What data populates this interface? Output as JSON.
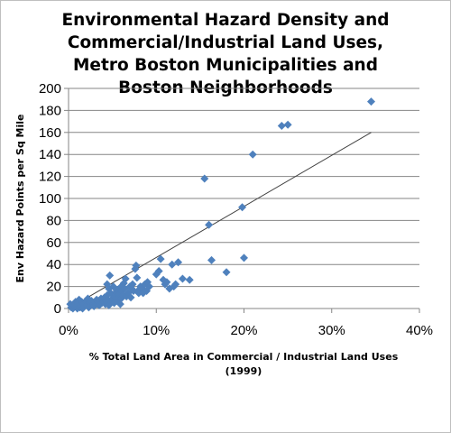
{
  "chart_data": {
    "type": "scatter",
    "title_lines": [
      "Environmental Hazard Density and",
      "Commercial/Industrial Land Uses,",
      "Metro Boston Municipalities and",
      "Boston Neighborhoods"
    ],
    "xlabel_lines": [
      "% Total Land Area in Commercial / Industrial Land Uses",
      "(1999)"
    ],
    "ylabel": "Env Hazard Points per Sq Mile",
    "xlim": [
      0,
      0.4
    ],
    "ylim": [
      0,
      200
    ],
    "x_ticks": [
      0,
      0.1,
      0.2,
      0.3,
      0.4
    ],
    "x_tick_labels": [
      "0%",
      "10%",
      "20%",
      "30%",
      "40%"
    ],
    "y_ticks": [
      0,
      20,
      40,
      60,
      80,
      100,
      120,
      140,
      160,
      180,
      200
    ],
    "y_tick_labels": [
      "0",
      "20",
      "40",
      "60",
      "80",
      "100",
      "120",
      "140",
      "160",
      "180",
      "200"
    ],
    "grid": "horizontal",
    "marker_color": "#4f81bd",
    "trendline": {
      "x": [
        0,
        0.345
      ],
      "y": [
        0,
        160
      ],
      "color": "#404040"
    },
    "points": [
      {
        "x": 0.002,
        "y": 4
      },
      {
        "x": 0.003,
        "y": 1
      },
      {
        "x": 0.005,
        "y": 0
      },
      {
        "x": 0.006,
        "y": 3
      },
      {
        "x": 0.008,
        "y": 6
      },
      {
        "x": 0.009,
        "y": 2
      },
      {
        "x": 0.01,
        "y": 0
      },
      {
        "x": 0.011,
        "y": 5
      },
      {
        "x": 0.012,
        "y": 8
      },
      {
        "x": 0.013,
        "y": 1
      },
      {
        "x": 0.014,
        "y": 3
      },
      {
        "x": 0.015,
        "y": 6
      },
      {
        "x": 0.016,
        "y": 0
      },
      {
        "x": 0.017,
        "y": 4
      },
      {
        "x": 0.018,
        "y": 2
      },
      {
        "x": 0.02,
        "y": 7
      },
      {
        "x": 0.021,
        "y": 3
      },
      {
        "x": 0.022,
        "y": 9
      },
      {
        "x": 0.023,
        "y": 1
      },
      {
        "x": 0.024,
        "y": 5
      },
      {
        "x": 0.025,
        "y": 3
      },
      {
        "x": 0.026,
        "y": 7
      },
      {
        "x": 0.028,
        "y": 4
      },
      {
        "x": 0.029,
        "y": 2
      },
      {
        "x": 0.03,
        "y": 6
      },
      {
        "x": 0.031,
        "y": 5
      },
      {
        "x": 0.032,
        "y": 8
      },
      {
        "x": 0.033,
        "y": 4
      },
      {
        "x": 0.034,
        "y": 6
      },
      {
        "x": 0.035,
        "y": 3
      },
      {
        "x": 0.036,
        "y": 7
      },
      {
        "x": 0.037,
        "y": 9
      },
      {
        "x": 0.038,
        "y": 5
      },
      {
        "x": 0.039,
        "y": 8
      },
      {
        "x": 0.04,
        "y": 6
      },
      {
        "x": 0.041,
        "y": 10
      },
      {
        "x": 0.042,
        "y": 4
      },
      {
        "x": 0.043,
        "y": 7
      },
      {
        "x": 0.044,
        "y": 12
      },
      {
        "x": 0.044,
        "y": 22
      },
      {
        "x": 0.045,
        "y": 8
      },
      {
        "x": 0.046,
        "y": 3
      },
      {
        "x": 0.046,
        "y": 18
      },
      {
        "x": 0.047,
        "y": 30
      },
      {
        "x": 0.048,
        "y": 14
      },
      {
        "x": 0.049,
        "y": 6
      },
      {
        "x": 0.05,
        "y": 9
      },
      {
        "x": 0.051,
        "y": 20
      },
      {
        "x": 0.052,
        "y": 5
      },
      {
        "x": 0.053,
        "y": 11
      },
      {
        "x": 0.054,
        "y": 15
      },
      {
        "x": 0.055,
        "y": 7
      },
      {
        "x": 0.056,
        "y": 17
      },
      {
        "x": 0.057,
        "y": 10
      },
      {
        "x": 0.058,
        "y": 13
      },
      {
        "x": 0.059,
        "y": 4
      },
      {
        "x": 0.06,
        "y": 9
      },
      {
        "x": 0.06,
        "y": 20
      },
      {
        "x": 0.061,
        "y": 16
      },
      {
        "x": 0.062,
        "y": 12
      },
      {
        "x": 0.063,
        "y": 23
      },
      {
        "x": 0.064,
        "y": 18
      },
      {
        "x": 0.065,
        "y": 27
      },
      {
        "x": 0.066,
        "y": 11
      },
      {
        "x": 0.068,
        "y": 14
      },
      {
        "x": 0.07,
        "y": 20
      },
      {
        "x": 0.071,
        "y": 10
      },
      {
        "x": 0.072,
        "y": 18
      },
      {
        "x": 0.073,
        "y": 22
      },
      {
        "x": 0.074,
        "y": 16
      },
      {
        "x": 0.076,
        "y": 36
      },
      {
        "x": 0.077,
        "y": 39
      },
      {
        "x": 0.078,
        "y": 28
      },
      {
        "x": 0.079,
        "y": 16
      },
      {
        "x": 0.08,
        "y": 14
      },
      {
        "x": 0.082,
        "y": 20
      },
      {
        "x": 0.084,
        "y": 18
      },
      {
        "x": 0.085,
        "y": 14
      },
      {
        "x": 0.087,
        "y": 22
      },
      {
        "x": 0.089,
        "y": 16
      },
      {
        "x": 0.09,
        "y": 24
      },
      {
        "x": 0.092,
        "y": 20
      },
      {
        "x": 0.1,
        "y": 31
      },
      {
        "x": 0.103,
        "y": 34
      },
      {
        "x": 0.105,
        "y": 45
      },
      {
        "x": 0.108,
        "y": 26
      },
      {
        "x": 0.11,
        "y": 22
      },
      {
        "x": 0.112,
        "y": 24
      },
      {
        "x": 0.115,
        "y": 18
      },
      {
        "x": 0.118,
        "y": 40
      },
      {
        "x": 0.12,
        "y": 20
      },
      {
        "x": 0.122,
        "y": 22
      },
      {
        "x": 0.125,
        "y": 42
      },
      {
        "x": 0.13,
        "y": 27
      },
      {
        "x": 0.138,
        "y": 26
      },
      {
        "x": 0.155,
        "y": 118
      },
      {
        "x": 0.16,
        "y": 76
      },
      {
        "x": 0.163,
        "y": 44
      },
      {
        "x": 0.18,
        "y": 33
      },
      {
        "x": 0.198,
        "y": 92
      },
      {
        "x": 0.2,
        "y": 46
      },
      {
        "x": 0.21,
        "y": 140
      },
      {
        "x": 0.243,
        "y": 166
      },
      {
        "x": 0.25,
        "y": 167
      },
      {
        "x": 0.345,
        "y": 188
      }
    ]
  }
}
